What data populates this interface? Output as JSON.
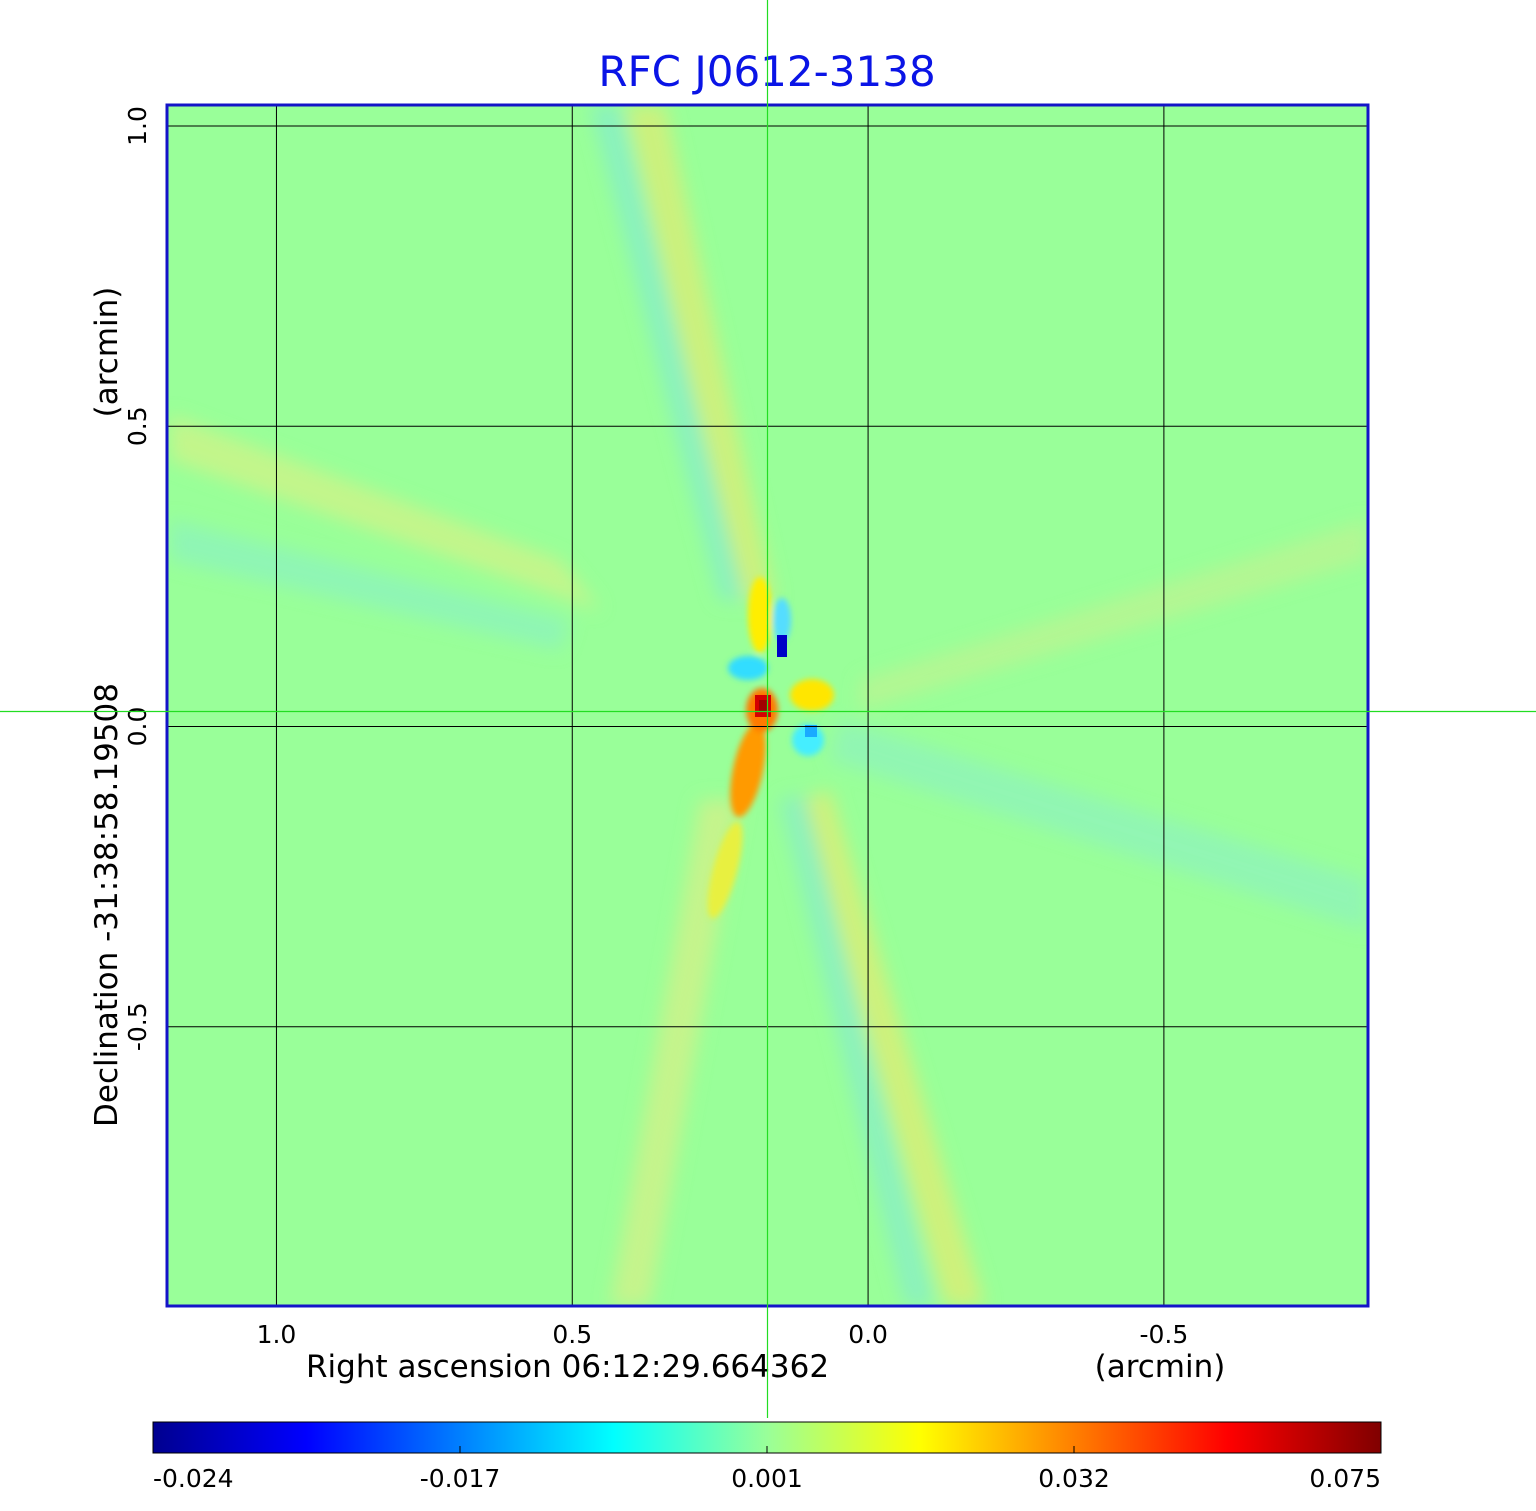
{
  "chart_data": {
    "type": "heatmap",
    "title": "RFC J0612-3138",
    "xlabel": "Right ascension  06:12:29.664362",
    "xunit": "(arcmin)",
    "ylabel": "Declination  -31:38:58.19508",
    "yunit": "(arcmin)",
    "x_ticks": [
      1.0,
      0.5,
      0.0,
      -0.5
    ],
    "x_tick_labels": [
      "1.0",
      "0.5",
      "0.0",
      "-0.5"
    ],
    "y_ticks": [
      1.0,
      0.5,
      0.0,
      -0.5
    ],
    "y_tick_labels": [
      "1.0",
      "0.5",
      "0.0",
      "-0.5"
    ],
    "xlim": [
      1.185,
      -0.845
    ],
    "ylim": [
      -0.965,
      1.035
    ],
    "grid": true,
    "crosshair": {
      "x": 0.17,
      "y": 0.025
    },
    "colorbar": {
      "orientation": "horizontal",
      "placement": "bottom",
      "tick_labels": [
        "-0.024",
        "-0.017",
        "0.001",
        "0.032",
        "0.075"
      ],
      "colormap": "jet"
    },
    "features": [
      {
        "x": 0.17,
        "y": 0.03,
        "value": 0.075
      },
      {
        "x": 0.19,
        "y": -0.05,
        "value": 0.045
      },
      {
        "x": 0.21,
        "y": -0.1,
        "value": 0.04
      },
      {
        "x": 0.14,
        "y": 0.1,
        "value": -0.024
      },
      {
        "x": 0.2,
        "y": 0.07,
        "value": -0.015
      },
      {
        "x": 0.1,
        "y": 0.0,
        "value": -0.012
      },
      {
        "x": 0.19,
        "y": 0.15,
        "value": 0.025
      },
      {
        "x": 0.07,
        "y": 0.03,
        "value": 0.02
      },
      {
        "x": 0.25,
        "y": -0.3,
        "value": 0.018
      },
      {
        "x": 0.0,
        "y": -0.5,
        "value": 0.015
      }
    ]
  },
  "colors": {
    "title": "#0a14e6",
    "frame": "#1414c8",
    "grid": "#000000",
    "crosshair": "#22dd22",
    "background_field": "#99ff99"
  }
}
